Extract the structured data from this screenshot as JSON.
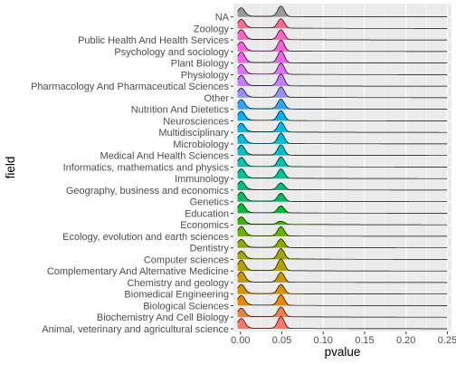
{
  "chart_data": {
    "type": "ridgeline",
    "xlabel": "pvalue",
    "ylabel": "field",
    "xlim": [
      -0.0085,
      0.255
    ],
    "x_ticks": [
      {
        "value": 0.0,
        "label": "0.00"
      },
      {
        "value": 0.05,
        "label": "0.05"
      },
      {
        "value": 0.1,
        "label": "0.10"
      },
      {
        "value": 0.15,
        "label": "0.15"
      },
      {
        "value": 0.2,
        "label": "0.20"
      },
      {
        "value": 0.25,
        "label": "0.25"
      }
    ],
    "grid": true,
    "legend": "none",
    "panel_background": "#EBEBEB",
    "series": [
      {
        "name": "Animal, veterinary and agricultural science",
        "color": "#F8766D",
        "peak1": 0.85,
        "peak2": 1.0,
        "tail": 0.03
      },
      {
        "name": "Biochemistry And Cell Biology",
        "color": "#EF7F47",
        "peak1": 0.75,
        "peak2": 0.85,
        "tail": 0.04
      },
      {
        "name": "Biological Sciences",
        "color": "#E58700",
        "peak1": 0.85,
        "peak2": 0.9,
        "tail": 0.03
      },
      {
        "name": "Biomedical Engineering",
        "color": "#D69100",
        "peak1": 0.8,
        "peak2": 0.8,
        "tail": 0.04
      },
      {
        "name": "Chemistry and geology",
        "color": "#C99800",
        "peak1": 0.9,
        "peak2": 0.85,
        "tail": 0.03
      },
      {
        "name": "Complementary And Alternative Medicine",
        "color": "#B9A000",
        "peak1": 0.9,
        "peak2": 1.0,
        "tail": 0.03
      },
      {
        "name": "Computer sciences",
        "color": "#A3A500",
        "peak1": 0.7,
        "peak2": 0.9,
        "tail": 0.05
      },
      {
        "name": "Dentistry",
        "color": "#8AAB00",
        "peak1": 0.7,
        "peak2": 0.75,
        "tail": 0.03
      },
      {
        "name": "Ecology, evolution and earth sciences",
        "color": "#6BB100",
        "peak1": 0.8,
        "peak2": 0.8,
        "tail": 0.03
      },
      {
        "name": "Economics",
        "color": "#39B600",
        "peak1": 0.65,
        "peak2": 0.3,
        "tail": 0.04
      },
      {
        "name": "Education",
        "color": "#00BA38",
        "peak1": 0.8,
        "peak2": 0.6,
        "tail": 0.04
      },
      {
        "name": "Genetics",
        "color": "#00BD5F",
        "peak1": 0.8,
        "peak2": 0.7,
        "tail": 0.03
      },
      {
        "name": "Geography, business and economics",
        "color": "#00BF7D",
        "peak1": 0.75,
        "peak2": 0.6,
        "tail": 0.04
      },
      {
        "name": "Immunology",
        "color": "#00C097",
        "peak1": 0.8,
        "peak2": 0.8,
        "tail": 0.03
      },
      {
        "name": "Informatics, mathematics and physics",
        "color": "#00C1AA",
        "peak1": 0.8,
        "peak2": 0.85,
        "tail": 0.04
      },
      {
        "name": "Medical And Health Sciences",
        "color": "#00BFC4",
        "peak1": 0.85,
        "peak2": 0.9,
        "tail": 0.03
      },
      {
        "name": "Microbiology",
        "color": "#00BCD8",
        "peak1": 0.8,
        "peak2": 0.9,
        "tail": 0.03
      },
      {
        "name": "Multidisciplinary",
        "color": "#00B8E7",
        "peak1": 0.75,
        "peak2": 0.85,
        "tail": 0.03
      },
      {
        "name": "Neurosciences",
        "color": "#00B0F6",
        "peak1": 0.8,
        "peak2": 0.85,
        "tail": 0.03
      },
      {
        "name": "Nutrition And Dietetics",
        "color": "#35A2FF",
        "peak1": 0.8,
        "peak2": 0.85,
        "tail": 0.03
      },
      {
        "name": "Other",
        "color": "#9590FF",
        "peak1": 0.8,
        "peak2": 0.9,
        "tail": 0.04
      },
      {
        "name": "Pharmacology And Pharmaceutical Sciences",
        "color": "#C77CFF",
        "peak1": 0.9,
        "peak2": 1.0,
        "tail": 0.03
      },
      {
        "name": "Physiology",
        "color": "#DF70F8",
        "peak1": 0.85,
        "peak2": 0.95,
        "tail": 0.03
      },
      {
        "name": "Plant Biology",
        "color": "#F066EA",
        "peak1": 0.9,
        "peak2": 1.0,
        "tail": 0.03
      },
      {
        "name": "Psychology and sociology",
        "color": "#FB61D7",
        "peak1": 0.8,
        "peak2": 0.95,
        "tail": 0.03
      },
      {
        "name": "Public Health And Health Services",
        "color": "#FF66C2",
        "peak1": 0.85,
        "peak2": 0.85,
        "tail": 0.03
      },
      {
        "name": "Zoology",
        "color": "#FF6C91",
        "peak1": 0.75,
        "peak2": 0.8,
        "tail": 0.03
      },
      {
        "name": "NA",
        "color": "#999999",
        "peak1": 0.75,
        "peak2": 0.9,
        "tail": 0.03
      }
    ]
  }
}
